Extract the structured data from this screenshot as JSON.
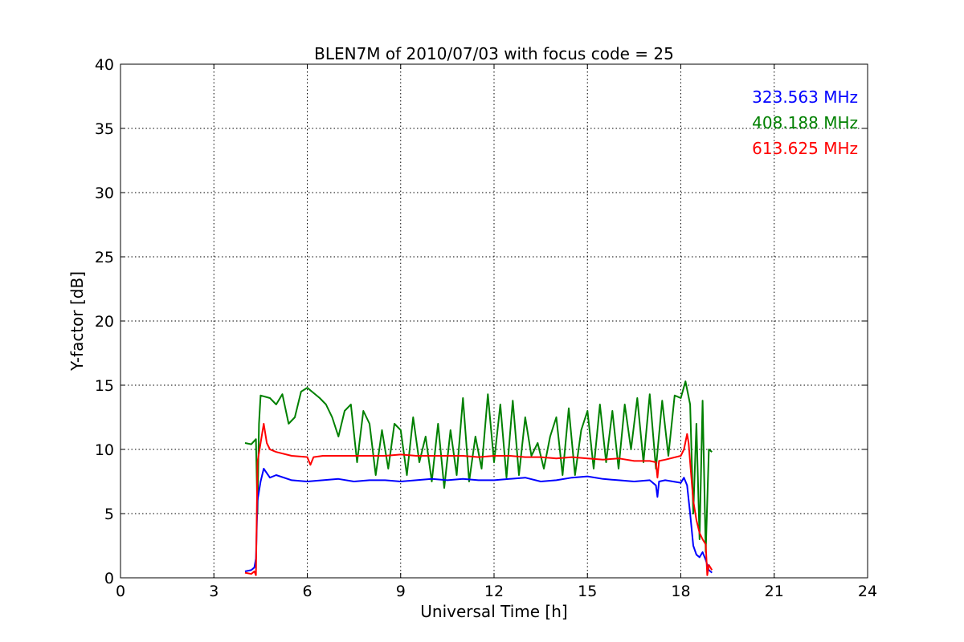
{
  "chart_data": {
    "type": "line",
    "title": "BLEN7M of 2010/07/03 with focus code = 25",
    "xlabel": "Universal Time [h]",
    "ylabel": "Y-factor [dB]",
    "xlim": [
      0,
      24
    ],
    "ylim": [
      0,
      40
    ],
    "xticks": [
      0,
      3,
      6,
      9,
      12,
      15,
      18,
      21,
      24
    ],
    "yticks": [
      0,
      5,
      10,
      15,
      20,
      25,
      30,
      35,
      40
    ],
    "grid": true,
    "legend_position": "top-right",
    "series": [
      {
        "name": "323.563 MHz",
        "color": "#0000ff",
        "x": [
          4.0,
          4.2,
          4.3,
          4.35,
          4.4,
          4.5,
          4.6,
          4.8,
          5.0,
          5.5,
          6.0,
          6.5,
          7.0,
          7.5,
          8.0,
          8.5,
          9.0,
          9.5,
          10.0,
          10.5,
          11.0,
          11.5,
          12.0,
          12.5,
          13.0,
          13.5,
          14.0,
          14.5,
          15.0,
          15.5,
          16.0,
          16.5,
          17.0,
          17.2,
          17.25,
          17.3,
          17.5,
          18.0,
          18.1,
          18.2,
          18.3,
          18.4,
          18.5,
          18.6,
          18.7,
          18.8,
          18.9,
          19.0
        ],
        "y": [
          0.5,
          0.6,
          0.8,
          1.5,
          6.0,
          7.5,
          8.5,
          7.8,
          8.0,
          7.6,
          7.5,
          7.6,
          7.7,
          7.5,
          7.6,
          7.6,
          7.5,
          7.6,
          7.7,
          7.6,
          7.7,
          7.6,
          7.6,
          7.7,
          7.8,
          7.5,
          7.6,
          7.8,
          7.9,
          7.7,
          7.6,
          7.5,
          7.6,
          7.2,
          6.3,
          7.5,
          7.6,
          7.4,
          7.8,
          7.2,
          5.0,
          2.5,
          1.8,
          1.6,
          2.0,
          1.4,
          0.6,
          0.4
        ]
      },
      {
        "name": "408.188 MHz",
        "color": "#008000",
        "x": [
          4.0,
          4.2,
          4.35,
          4.4,
          4.45,
          4.5,
          4.8,
          5.0,
          5.2,
          5.4,
          5.6,
          5.8,
          6.0,
          6.2,
          6.4,
          6.6,
          6.8,
          7.0,
          7.2,
          7.4,
          7.6,
          7.8,
          8.0,
          8.2,
          8.4,
          8.6,
          8.8,
          9.0,
          9.2,
          9.4,
          9.6,
          9.8,
          10.0,
          10.2,
          10.4,
          10.6,
          10.8,
          11.0,
          11.2,
          11.4,
          11.6,
          11.8,
          12.0,
          12.2,
          12.4,
          12.6,
          12.8,
          13.0,
          13.2,
          13.4,
          13.6,
          13.8,
          14.0,
          14.2,
          14.4,
          14.6,
          14.8,
          15.0,
          15.2,
          15.4,
          15.6,
          15.8,
          16.0,
          16.2,
          16.4,
          16.6,
          16.8,
          17.0,
          17.2,
          17.4,
          17.6,
          17.8,
          18.0,
          18.15,
          18.3,
          18.4,
          18.5,
          18.6,
          18.7,
          18.8,
          18.9,
          19.0
        ],
        "y": [
          10.5,
          10.4,
          10.8,
          5.0,
          12.0,
          14.2,
          14.0,
          13.5,
          14.3,
          12.0,
          12.5,
          14.5,
          14.8,
          14.4,
          14.0,
          13.5,
          12.5,
          11.0,
          13.0,
          13.5,
          9.0,
          13.0,
          12.0,
          8.0,
          11.5,
          8.5,
          12.0,
          11.5,
          8.0,
          12.5,
          9.0,
          11.0,
          7.5,
          12.0,
          7.0,
          11.5,
          8.0,
          14.0,
          7.5,
          11.0,
          8.5,
          14.3,
          9.0,
          13.5,
          7.8,
          13.8,
          8.0,
          12.5,
          9.5,
          10.5,
          8.5,
          11.0,
          12.5,
          8.0,
          13.2,
          8.0,
          11.5,
          13.0,
          8.5,
          13.5,
          9.0,
          13.0,
          8.5,
          13.5,
          10.0,
          14.0,
          9.0,
          14.3,
          8.5,
          13.8,
          9.5,
          14.2,
          14.0,
          15.3,
          13.5,
          5.0,
          12.0,
          3.0,
          13.8,
          2.0,
          10.0,
          9.8
        ]
      },
      {
        "name": "613.625 MHz",
        "color": "#ff0000",
        "x": [
          4.0,
          4.2,
          4.3,
          4.35,
          4.4,
          4.5,
          4.6,
          4.7,
          4.8,
          5.0,
          5.5,
          6.0,
          6.1,
          6.2,
          6.5,
          7.0,
          7.5,
          8.0,
          8.5,
          9.0,
          9.5,
          10.0,
          10.5,
          11.0,
          11.5,
          12.0,
          12.5,
          13.0,
          13.5,
          14.0,
          14.5,
          15.0,
          15.5,
          16.0,
          16.5,
          17.0,
          17.2,
          17.25,
          17.3,
          17.5,
          18.0,
          18.1,
          18.2,
          18.25,
          18.3,
          18.4,
          18.5,
          18.6,
          18.7,
          18.8,
          18.85,
          18.9,
          19.0
        ],
        "y": [
          0.4,
          0.3,
          0.5,
          0.2,
          9.0,
          10.5,
          12.0,
          10.5,
          10.0,
          9.8,
          9.5,
          9.4,
          8.8,
          9.4,
          9.5,
          9.5,
          9.5,
          9.5,
          9.5,
          9.6,
          9.5,
          9.5,
          9.5,
          9.5,
          9.4,
          9.5,
          9.5,
          9.4,
          9.4,
          9.3,
          9.4,
          9.3,
          9.2,
          9.3,
          9.1,
          9.1,
          9.0,
          7.8,
          9.1,
          9.2,
          9.5,
          10.0,
          11.2,
          10.5,
          9.0,
          6.0,
          4.5,
          3.5,
          3.0,
          2.6,
          0.2,
          1.0,
          0.6
        ]
      }
    ]
  }
}
